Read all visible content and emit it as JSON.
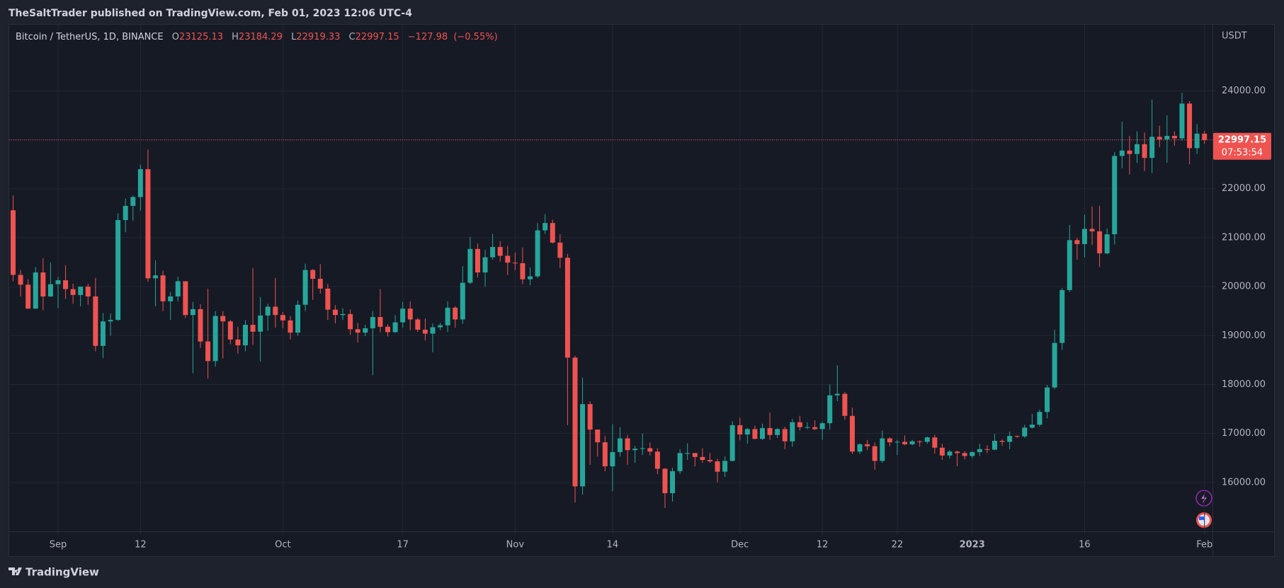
{
  "page": {
    "published": "TheSaltTrader published on TradingView.com, Feb 01, 2023 12:06 UTC-4",
    "brand": "TradingView"
  },
  "chart_data": {
    "type": "candlestick",
    "title": "Bitcoin / TetherUS, 1D, BINANCE",
    "ohlc_labels": [
      "O",
      "H",
      "L",
      "C"
    ],
    "change": {
      "value": -127.98,
      "label": "−127.98"
    },
    "change_pct": {
      "value": -0.55,
      "label": "(−0.55%)"
    },
    "y_unit": "USDT",
    "countdown": "07:53:54",
    "up_color": "#26a69a",
    "down_color": "#ef5350",
    "grid": true,
    "ylim": [
      15000,
      25350
    ],
    "yticks": [
      {
        "value": 16000,
        "label": "16000.00"
      },
      {
        "value": 17000,
        "label": "17000.00"
      },
      {
        "value": 18000,
        "label": "18000.00"
      },
      {
        "value": 19000,
        "label": "19000.00"
      },
      {
        "value": 20000,
        "label": "20000.00"
      },
      {
        "value": 21000,
        "label": "21000.00"
      },
      {
        "value": 22000,
        "label": "22000.00"
      },
      {
        "value": 23000,
        "label": "23000.00"
      },
      {
        "value": 24000,
        "label": "24000.00"
      }
    ],
    "xticks": [
      {
        "value": 6,
        "label": "Sep"
      },
      {
        "value": 17,
        "label": "12"
      },
      {
        "value": 36,
        "label": "Oct"
      },
      {
        "value": 52,
        "label": "17"
      },
      {
        "value": 67,
        "label": "Nov"
      },
      {
        "value": 80,
        "label": "14"
      },
      {
        "value": 97,
        "label": "Dec"
      },
      {
        "value": 108,
        "label": "12"
      },
      {
        "value": 118,
        "label": "22"
      },
      {
        "value": 128,
        "label": "2023"
      },
      {
        "value": 143,
        "label": "16"
      },
      {
        "value": 159,
        "label": "Feb"
      }
    ],
    "open": [
      21560,
      20240,
      20040,
      19550,
      20290,
      19800,
      20050,
      20130,
      19950,
      19830,
      20000,
      19800,
      18790,
      19290,
      19320,
      21360,
      21650,
      21830,
      22400,
      20170,
      20230,
      19700,
      19800,
      20110,
      19420,
      19540,
      18880,
      18480,
      19400,
      19290,
      18920,
      18800,
      19220,
      19080,
      19410,
      19590,
      19420,
      19310,
      19060,
      19630,
      20340,
      20160,
      19960,
      19530,
      19420,
      19440,
      19130,
      19060,
      19150,
      19380,
      19180,
      19070,
      19270,
      19550,
      19330,
      19120,
      19040,
      19170,
      19210,
      19570,
      19330,
      20080,
      20770,
      20290,
      20600,
      20810,
      20630,
      20490,
      20480,
      20150,
      20210,
      21150,
      21300,
      20900,
      20590,
      18550,
      15920,
      17600,
      17080,
      16820,
      16330,
      16620,
      16900,
      16660,
      16690,
      16700,
      16630,
      16280,
      15780,
      16230,
      16600,
      16600,
      16520,
      16460,
      16430,
      16220,
      16440,
      17170,
      16980,
      17090,
      16890,
      17110,
      16970,
      17090,
      16840,
      17230,
      17130,
      17130,
      17090,
      17210,
      17780,
      17810,
      17360,
      16630,
      16780,
      16740,
      16440,
      16900,
      16820,
      16830,
      16780,
      16840,
      16830,
      16920,
      16710,
      16550,
      16630,
      16600,
      16540,
      16620,
      16680,
      16670,
      16850,
      16830,
      16950,
      16940,
      17120,
      17180,
      17440,
      17940,
      18850,
      19930,
      20950,
      20870,
      21180,
      21130,
      20680,
      21070,
      22670,
      22780,
      22710,
      22910,
      22630,
      23060,
      23010,
      23080,
      23030,
      23740,
      22830,
      23125.13
    ],
    "high": [
      21860,
      20340,
      20150,
      20400,
      20580,
      20490,
      20200,
      20440,
      20060,
      20000,
      20060,
      20180,
      19460,
      19450,
      21500,
      21800,
      21860,
      22490,
      22800,
      20540,
      20330,
      19890,
      20200,
      20110,
      19690,
      19640,
      19960,
      19500,
      19500,
      19320,
      19180,
      19320,
      20380,
      19790,
      19650,
      20180,
      19480,
      19400,
      19720,
      20470,
      20360,
      20460,
      20060,
      19620,
      19560,
      19530,
      19260,
      19220,
      19500,
      19950,
      19230,
      19420,
      19690,
      19700,
      19360,
      19350,
      19250,
      19260,
      19700,
      19600,
      20420,
      21020,
      20880,
      20750,
      21080,
      20930,
      20830,
      20700,
      20800,
      20390,
      21300,
      21480,
      21370,
      21070,
      20670,
      18590,
      18140,
      17660,
      17080,
      16950,
      17190,
      17130,
      16970,
      16750,
      17000,
      16820,
      16700,
      16290,
      16300,
      16680,
      16800,
      16600,
      16700,
      16600,
      16480,
      16530,
      17250,
      17320,
      17110,
      17160,
      17200,
      17430,
      17110,
      17140,
      17300,
      17360,
      17230,
      17270,
      17240,
      18000,
      18390,
      17850,
      17530,
      16800,
      16870,
      16820,
      17060,
      16920,
      16870,
      16960,
      16870,
      16860,
      16940,
      16970,
      16790,
      16660,
      16650,
      16640,
      16630,
      16790,
      16760,
      16990,
      16880,
      17040,
      16960,
      17180,
      17400,
      17490,
      17990,
      19120,
      19970,
      21260,
      21000,
      21470,
      21640,
      21650,
      21190,
      22750,
      23370,
      23080,
      23170,
      23150,
      23820,
      23290,
      23500,
      23170,
      23960,
      23790,
      23320,
      23184.29
    ],
    "low": [
      20110,
      19800,
      19600,
      19550,
      19520,
      19790,
      19560,
      19750,
      19650,
      19600,
      19630,
      18680,
      18540,
      19000,
      19300,
      21110,
      21350,
      21550,
      20100,
      19600,
      19500,
      19320,
      19700,
      19360,
      18230,
      18750,
      18120,
      18370,
      18530,
      18820,
      18630,
      18680,
      18810,
      18470,
      19100,
      19160,
      19150,
      18920,
      19000,
      19500,
      19730,
      19860,
      19320,
      19250,
      19320,
      19020,
      18860,
      18990,
      18190,
      19070,
      18980,
      19060,
      19160,
      19110,
      19070,
      18900,
      18660,
      19110,
      19070,
      19160,
      19240,
      20050,
      20190,
      20000,
      20550,
      20510,
      20240,
      20340,
      20050,
      20030,
      20180,
      21080,
      20880,
      20380,
      17170,
      15590,
      15750,
      16360,
      16530,
      16230,
      15820,
      16530,
      16360,
      16400,
      16560,
      16550,
      16170,
      15480,
      15610,
      16170,
      16460,
      16330,
      16400,
      16400,
      16000,
      16110,
      16430,
      16860,
      16790,
      16880,
      16870,
      16870,
      16910,
      16680,
      16730,
      17060,
      17090,
      17070,
      16870,
      17080,
      17660,
      17280,
      16580,
      16580,
      16660,
      16260,
      16400,
      16740,
      16560,
      16760,
      16760,
      16730,
      16790,
      16590,
      16460,
      16490,
      16330,
      16470,
      16500,
      16540,
      16600,
      16660,
      16750,
      16680,
      16910,
      16910,
      17100,
      17140,
      17310,
      17910,
      18710,
      19890,
      20550,
      20600,
      20850,
      20400,
      20660,
      20860,
      22420,
      22290,
      22530,
      22360,
      22320,
      22850,
      22530,
      22880,
      22980,
      22500,
      22710,
      22919.33
    ],
    "close": [
      20240,
      20040,
      19550,
      20290,
      19800,
      20050,
      20130,
      19950,
      19830,
      20000,
      19800,
      18790,
      19290,
      19320,
      21360,
      21650,
      21830,
      22400,
      20170,
      20230,
      19700,
      19800,
      20110,
      19420,
      19540,
      18880,
      18480,
      19400,
      19290,
      18920,
      18800,
      19220,
      19080,
      19410,
      19590,
      19420,
      19310,
      19060,
      19630,
      20340,
      20160,
      19960,
      19530,
      19420,
      19440,
      19130,
      19060,
      19150,
      19380,
      19180,
      19070,
      19270,
      19550,
      19330,
      19120,
      19040,
      19170,
      19210,
      19570,
      19330,
      20080,
      20770,
      20290,
      20600,
      20810,
      20630,
      20490,
      20480,
      20150,
      20210,
      21150,
      21300,
      20900,
      20590,
      18550,
      15920,
      17600,
      17080,
      16820,
      16330,
      16620,
      16900,
      16660,
      16690,
      16700,
      16630,
      16280,
      15780,
      16230,
      16600,
      16600,
      16520,
      16460,
      16430,
      16220,
      16440,
      17170,
      16980,
      17090,
      16890,
      17110,
      16970,
      17090,
      16840,
      17230,
      17130,
      17130,
      17090,
      17210,
      17780,
      17810,
      17360,
      16630,
      16780,
      16740,
      16440,
      16900,
      16820,
      16830,
      16780,
      16840,
      16830,
      16920,
      16710,
      16550,
      16630,
      16600,
      16540,
      16620,
      16680,
      16670,
      16850,
      16830,
      16950,
      16940,
      17120,
      17180,
      17440,
      17940,
      18850,
      19930,
      20950,
      20870,
      21180,
      21130,
      20680,
      21070,
      22670,
      22780,
      22710,
      22910,
      22630,
      23060,
      23010,
      23080,
      23030,
      23740,
      22830,
      23125.13,
      22997.15
    ]
  }
}
